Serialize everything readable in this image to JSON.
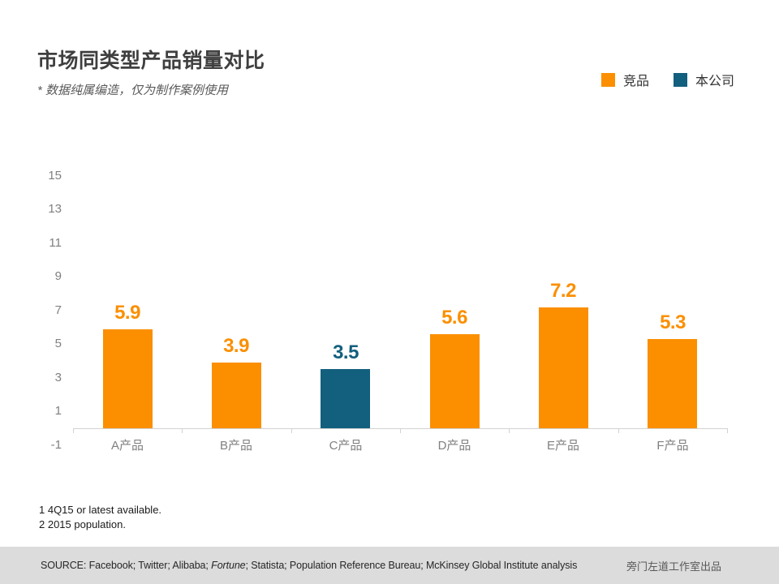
{
  "header": {
    "title": "市场同类型产品销量对比",
    "subtitle": "* 数据纯属编造，仅为制作案例使用"
  },
  "legend": {
    "items": [
      {
        "label": "竞品",
        "color": "#fb8f00"
      },
      {
        "label": "本公司",
        "color": "#135f7e"
      }
    ]
  },
  "chart_data": {
    "type": "bar",
    "title": "市场同类型产品销量对比",
    "categories": [
      "A产品",
      "B产品",
      "C产品",
      "D产品",
      "E产品",
      "F产品"
    ],
    "values": [
      5.9,
      3.9,
      3.5,
      5.6,
      7.2,
      5.3
    ],
    "data_labels": [
      "5.9",
      "3.9",
      "3.5",
      "5.6",
      "7.2",
      "5.3"
    ],
    "groups": [
      "竞品",
      "竞品",
      "本公司",
      "竞品",
      "竞品",
      "竞品"
    ],
    "bar_colors": [
      "#fb8f00",
      "#fb8f00",
      "#135f7e",
      "#fb8f00",
      "#fb8f00",
      "#fb8f00"
    ],
    "xlabel": "",
    "ylabel": "",
    "yticks": [
      15,
      13,
      11,
      9,
      7,
      5,
      3,
      1,
      -1
    ],
    "ylim": [
      -1,
      15.5
    ],
    "grid": false,
    "legend_position": "top-right",
    "tick_label_color": "#808080",
    "axis_line_color": "#d2d2d2"
  },
  "footnotes": {
    "line1": "1 4Q15 or latest available.",
    "line2": "2 2015 population."
  },
  "footer": {
    "source_segments": [
      {
        "text": "SOURCE: Facebook; Twitter; Alibaba; ",
        "italic": false
      },
      {
        "text": "Fortune",
        "italic": true
      },
      {
        "text": "; Statista; Population Reference Bureau; McKinsey Global Institute analysis",
        "italic": false
      }
    ],
    "credit": "旁门左道工作室出品"
  }
}
